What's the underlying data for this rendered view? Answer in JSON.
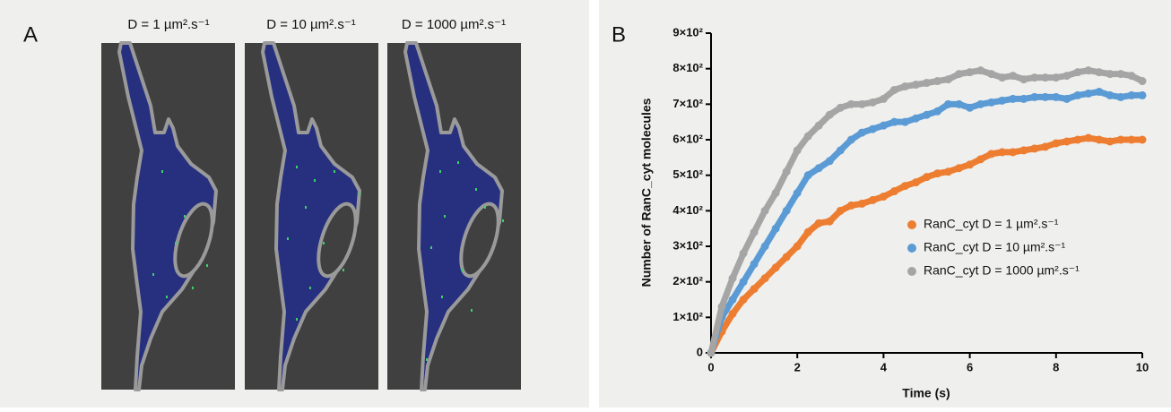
{
  "panel_a": {
    "label": "A",
    "captions": [
      "D = 1 µm².s⁻¹",
      "D = 10 µm².s⁻¹",
      "D = 1000 µm².s⁻¹"
    ]
  },
  "chart_data": {
    "type": "scatter",
    "panel_label": "B",
    "x_label": "Time (s)",
    "y_label": "Number of RanC_cyt molecules",
    "xlim": [
      0,
      10
    ],
    "ylim": [
      0,
      900
    ],
    "xticks": [
      0,
      2,
      4,
      6,
      8,
      10
    ],
    "yticks": [
      0,
      {
        "value": 100,
        "label": "1×10²"
      },
      {
        "value": 200,
        "label": "2×10²"
      },
      {
        "value": 300,
        "label": "3×10²"
      },
      {
        "value": 400,
        "label": "4×10²"
      },
      {
        "value": 500,
        "label": "5×10²"
      },
      {
        "value": 600,
        "label": "6×10²"
      },
      {
        "value": 700,
        "label": "7×10²"
      },
      {
        "value": 800,
        "label": "8×10²"
      },
      {
        "value": 900,
        "label": "9×10²"
      }
    ],
    "x": [
      0,
      0.25,
      0.5,
      0.75,
      1,
      1.25,
      1.5,
      1.75,
      2,
      2.25,
      2.5,
      2.75,
      3,
      3.25,
      3.5,
      3.75,
      4,
      4.25,
      4.5,
      4.75,
      5,
      5.25,
      5.5,
      5.75,
      6,
      6.25,
      6.5,
      6.75,
      7,
      7.25,
      7.5,
      7.75,
      8,
      8.25,
      8.5,
      8.75,
      9,
      9.25,
      9.5,
      9.75,
      10
    ],
    "series": [
      {
        "name": "RanC_cyt D = 1 µm².s⁻¹",
        "color": "#ed7d31",
        "values": [
          0,
          60,
          110,
          150,
          180,
          210,
          240,
          270,
          300,
          340,
          365,
          370,
          400,
          415,
          420,
          430,
          440,
          455,
          470,
          480,
          495,
          505,
          510,
          520,
          530,
          545,
          560,
          565,
          565,
          570,
          575,
          580,
          590,
          595,
          600,
          605,
          600,
          595,
          600,
          600,
          600
        ]
      },
      {
        "name": "RanC_cyt D = 10 µm².s⁻¹",
        "color": "#5b9bd5",
        "values": [
          0,
          100,
          150,
          200,
          250,
          300,
          350,
          400,
          450,
          500,
          520,
          540,
          570,
          600,
          620,
          630,
          640,
          650,
          650,
          660,
          670,
          680,
          700,
          700,
          690,
          700,
          705,
          710,
          715,
          715,
          720,
          720,
          720,
          715,
          725,
          730,
          735,
          725,
          720,
          725,
          725
        ]
      },
      {
        "name": "RanC_cyt D = 1000 µm².s⁻¹",
        "color": "#a5a5a5",
        "values": [
          0,
          130,
          210,
          280,
          340,
          400,
          450,
          510,
          570,
          610,
          640,
          670,
          690,
          700,
          700,
          705,
          715,
          740,
          750,
          755,
          760,
          765,
          770,
          785,
          790,
          795,
          785,
          775,
          780,
          770,
          775,
          775,
          775,
          780,
          790,
          795,
          790,
          785,
          785,
          780,
          765
        ]
      }
    ]
  }
}
